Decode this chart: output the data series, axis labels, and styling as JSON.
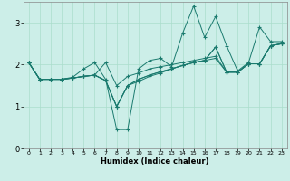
{
  "xlabel": "Humidex (Indice chaleur)",
  "bg_color": "#cceee8",
  "grid_color": "#aaddcc",
  "line_color": "#1a7a6e",
  "xlim": [
    -0.5,
    23.5
  ],
  "ylim": [
    0,
    3.5
  ],
  "xticks": [
    0,
    1,
    2,
    3,
    4,
    5,
    6,
    7,
    8,
    9,
    10,
    11,
    12,
    13,
    14,
    15,
    16,
    17,
    18,
    19,
    20,
    21,
    22,
    23
  ],
  "yticks": [
    0,
    1,
    2,
    3
  ],
  "lines": [
    [
      2.05,
      1.65,
      1.65,
      1.65,
      1.7,
      1.9,
      2.05,
      1.65,
      0.45,
      0.45,
      1.9,
      2.1,
      2.15,
      1.95,
      2.75,
      3.4,
      2.65,
      3.15,
      2.45,
      1.85,
      2.05,
      2.9,
      2.55,
      2.55
    ],
    [
      2.05,
      1.65,
      1.65,
      1.65,
      1.68,
      1.72,
      1.75,
      2.05,
      1.5,
      1.72,
      1.8,
      1.9,
      1.95,
      2.0,
      2.05,
      2.1,
      2.15,
      2.2,
      1.82,
      1.82,
      2.02,
      2.02,
      2.45,
      2.5
    ],
    [
      2.05,
      1.65,
      1.65,
      1.65,
      1.68,
      1.72,
      1.75,
      1.62,
      1.0,
      1.5,
      1.6,
      1.72,
      1.8,
      1.9,
      1.98,
      2.05,
      2.1,
      2.15,
      1.82,
      1.82,
      2.02,
      2.02,
      2.45,
      2.5
    ],
    [
      2.05,
      1.65,
      1.65,
      1.65,
      1.68,
      1.72,
      1.75,
      1.62,
      1.0,
      1.5,
      1.65,
      1.75,
      1.83,
      1.9,
      1.98,
      2.05,
      2.1,
      2.42,
      1.82,
      1.82,
      2.02,
      2.02,
      2.45,
      2.5
    ],
    [
      2.05,
      1.65,
      1.65,
      1.65,
      1.68,
      1.72,
      1.75,
      1.62,
      1.0,
      1.5,
      1.65,
      1.75,
      1.83,
      1.9,
      1.98,
      2.05,
      2.1,
      2.42,
      1.82,
      1.82,
      2.02,
      2.02,
      2.45,
      2.5
    ]
  ]
}
